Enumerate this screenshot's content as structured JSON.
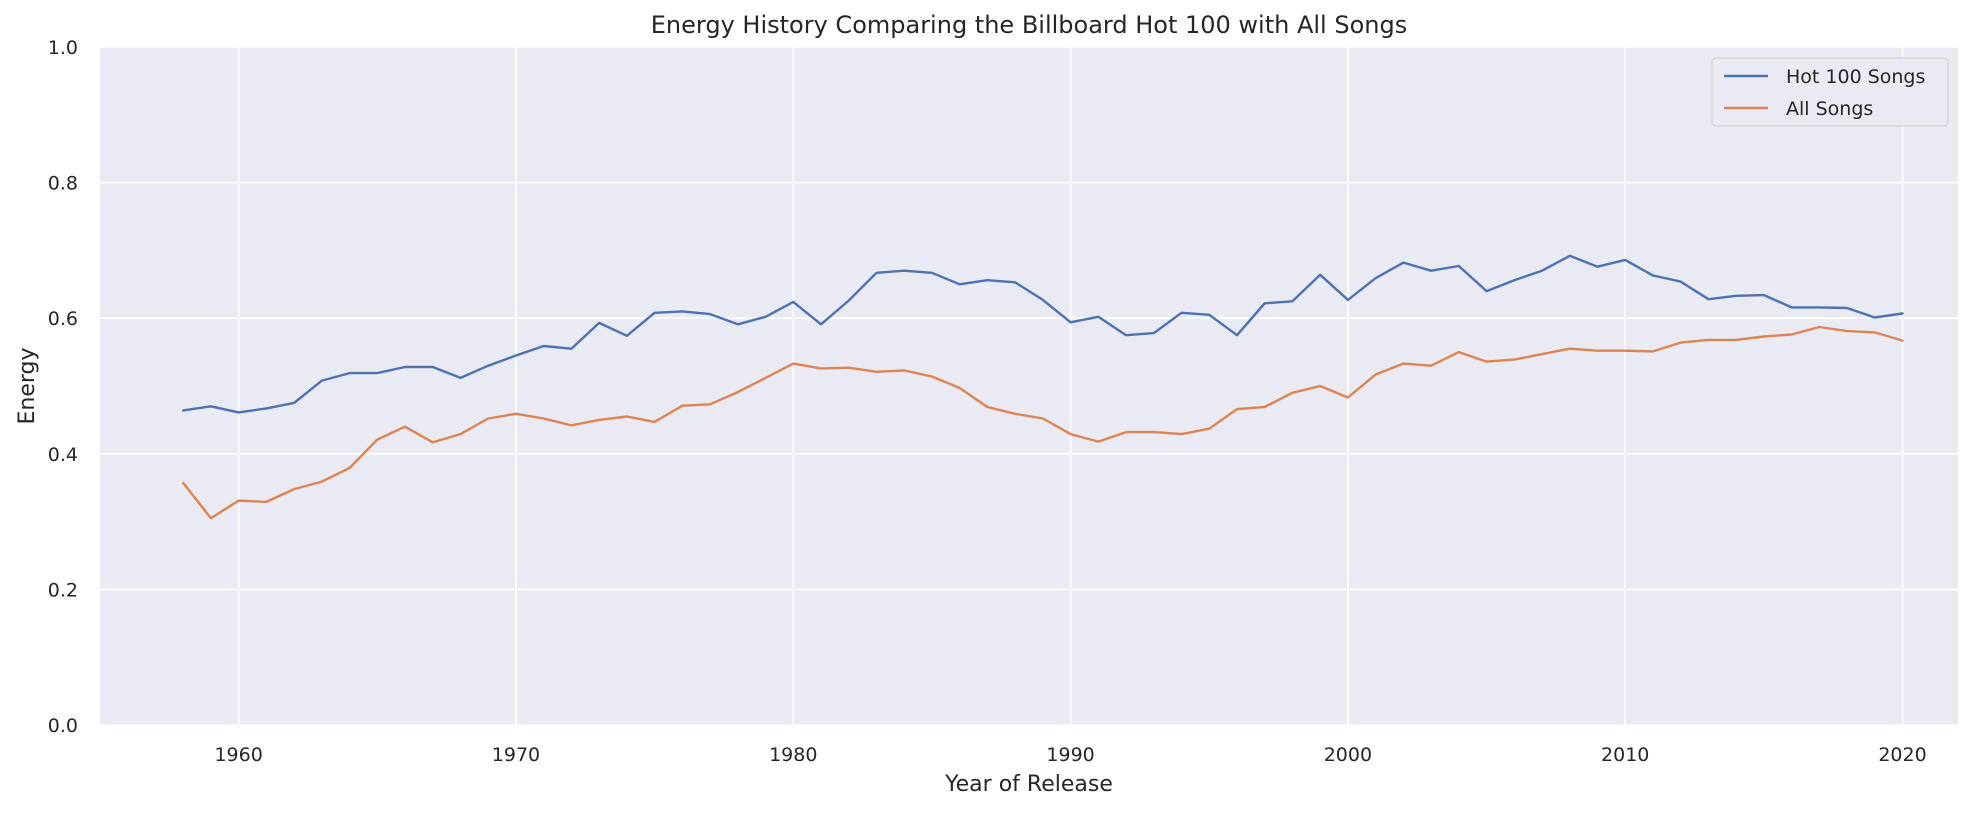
{
  "chart_data": {
    "type": "line",
    "title": "Energy History Comparing the Billboard Hot 100 with All Songs",
    "xlabel": "Year of Release",
    "ylabel": "Energy",
    "xlim": [
      1955,
      2022
    ],
    "ylim": [
      0.0,
      1.0
    ],
    "xticks": [
      1960,
      1970,
      1980,
      1990,
      2000,
      2010,
      2020
    ],
    "xtick_labels": [
      "1960",
      "1970",
      "1980",
      "1990",
      "2000",
      "2010",
      "2020"
    ],
    "yticks": [
      0.0,
      0.2,
      0.4,
      0.6,
      0.8,
      1.0
    ],
    "ytick_labels": [
      "0.0",
      "0.2",
      "0.4",
      "0.6",
      "0.8",
      "1.0"
    ],
    "grid": true,
    "legend_position": "top-right",
    "background_color": "#eaeaf2",
    "x": [
      1958,
      1959,
      1960,
      1961,
      1962,
      1963,
      1964,
      1965,
      1966,
      1967,
      1968,
      1969,
      1970,
      1971,
      1972,
      1973,
      1974,
      1975,
      1976,
      1977,
      1978,
      1979,
      1980,
      1981,
      1982,
      1983,
      1984,
      1985,
      1986,
      1987,
      1988,
      1989,
      1990,
      1991,
      1992,
      1993,
      1994,
      1995,
      1996,
      1997,
      1998,
      1999,
      2000,
      2001,
      2002,
      2003,
      2004,
      2005,
      2006,
      2007,
      2008,
      2009,
      2010,
      2011,
      2012,
      2013,
      2014,
      2015,
      2016,
      2017,
      2018,
      2019,
      2020
    ],
    "series": [
      {
        "name": "Hot 100 Songs",
        "color": "#4c72b0",
        "values": [
          0.464,
          0.47,
          0.461,
          0.467,
          0.475,
          0.508,
          0.519,
          0.519,
          0.528,
          0.528,
          0.512,
          0.53,
          0.545,
          0.559,
          0.555,
          0.593,
          0.574,
          0.608,
          0.61,
          0.606,
          0.591,
          0.602,
          0.624,
          0.591,
          0.626,
          0.667,
          0.67,
          0.667,
          0.65,
          0.656,
          0.653,
          0.627,
          0.594,
          0.602,
          0.575,
          0.578,
          0.608,
          0.605,
          0.575,
          0.622,
          0.625,
          0.664,
          0.627,
          0.659,
          0.682,
          0.67,
          0.677,
          0.64,
          0.656,
          0.67,
          0.692,
          0.676,
          0.686,
          0.663,
          0.654,
          0.628,
          0.633,
          0.634,
          0.616,
          0.616,
          0.615,
          0.601,
          0.607
        ]
      },
      {
        "name": "All Songs",
        "color": "#dd8452",
        "values": [
          0.357,
          0.305,
          0.331,
          0.329,
          0.348,
          0.359,
          0.379,
          0.421,
          0.44,
          0.417,
          0.429,
          0.452,
          0.459,
          0.452,
          0.442,
          0.45,
          0.455,
          0.447,
          0.471,
          0.473,
          0.491,
          0.512,
          0.533,
          0.526,
          0.527,
          0.521,
          0.523,
          0.514,
          0.497,
          0.469,
          0.459,
          0.452,
          0.429,
          0.418,
          0.432,
          0.432,
          0.429,
          0.437,
          0.466,
          0.469,
          0.49,
          0.5,
          0.483,
          0.517,
          0.533,
          0.53,
          0.55,
          0.536,
          0.539,
          0.547,
          0.555,
          0.552,
          0.552,
          0.551,
          0.564,
          0.568,
          0.568,
          0.573,
          0.576,
          0.587,
          0.581,
          0.579,
          0.567
        ]
      }
    ]
  }
}
